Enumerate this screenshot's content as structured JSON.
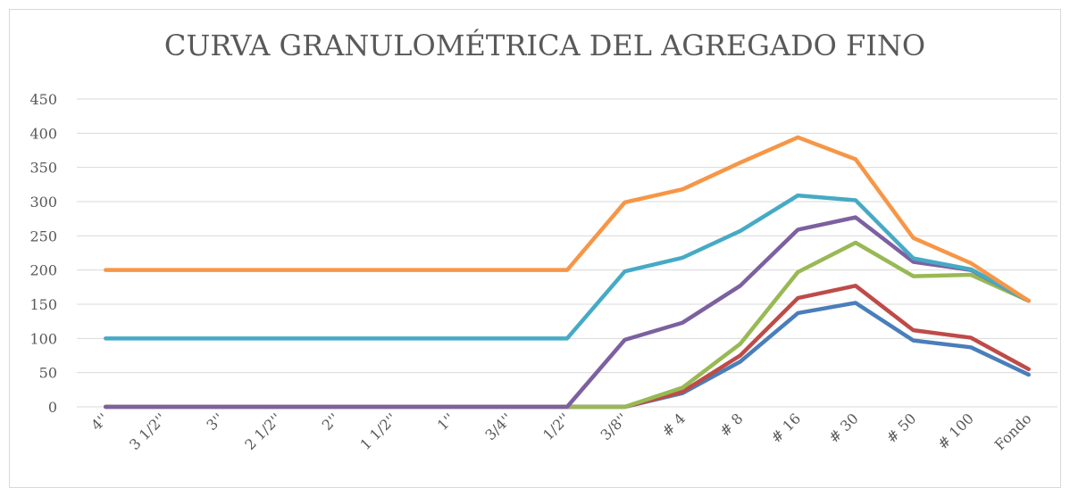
{
  "chart_data": {
    "type": "line",
    "title": "CURVA GRANULOMÉTRICA DEL AGREGADO FINO",
    "categories": [
      "4''",
      "3 1/2''",
      "3''",
      "2 1/2''",
      "2''",
      "1 1/2''",
      "1''",
      "3/4''",
      "1/2''",
      "3/8''",
      "# 4",
      "# 8",
      "# 16",
      "# 30",
      "# 50",
      "# 100",
      "Fondo"
    ],
    "series": [
      {
        "color": "#4a7ebb",
        "values": [
          0,
          0,
          0,
          0,
          0,
          0,
          0,
          0,
          0,
          0,
          20,
          66,
          137,
          152,
          97,
          87,
          47
        ]
      },
      {
        "color": "#be4b48",
        "values": [
          0,
          0,
          0,
          0,
          0,
          0,
          0,
          0,
          0,
          0,
          22,
          75,
          159,
          177,
          112,
          101,
          55
        ]
      },
      {
        "color": "#98b954",
        "values": [
          0,
          0,
          0,
          0,
          0,
          0,
          0,
          0,
          0,
          0,
          28,
          92,
          197,
          240,
          191,
          193,
          155
        ]
      },
      {
        "color": "#7d60a0",
        "values": [
          0,
          0,
          0,
          0,
          0,
          0,
          0,
          0,
          0,
          98,
          123,
          177,
          259,
          277,
          212,
          200,
          155
        ]
      },
      {
        "color": "#46aac5",
        "values": [
          100,
          100,
          100,
          100,
          100,
          100,
          100,
          100,
          100,
          198,
          218,
          257,
          309,
          302,
          217,
          201,
          155
        ]
      },
      {
        "color": "#f79646",
        "values": [
          200,
          200,
          200,
          200,
          200,
          200,
          200,
          200,
          200,
          299,
          318,
          357,
          394,
          362,
          247,
          210,
          155
        ]
      }
    ],
    "ylim": [
      0,
      450
    ],
    "yticks": [
      0,
      50,
      100,
      150,
      200,
      250,
      300,
      350,
      400,
      450
    ],
    "grid": true
  }
}
